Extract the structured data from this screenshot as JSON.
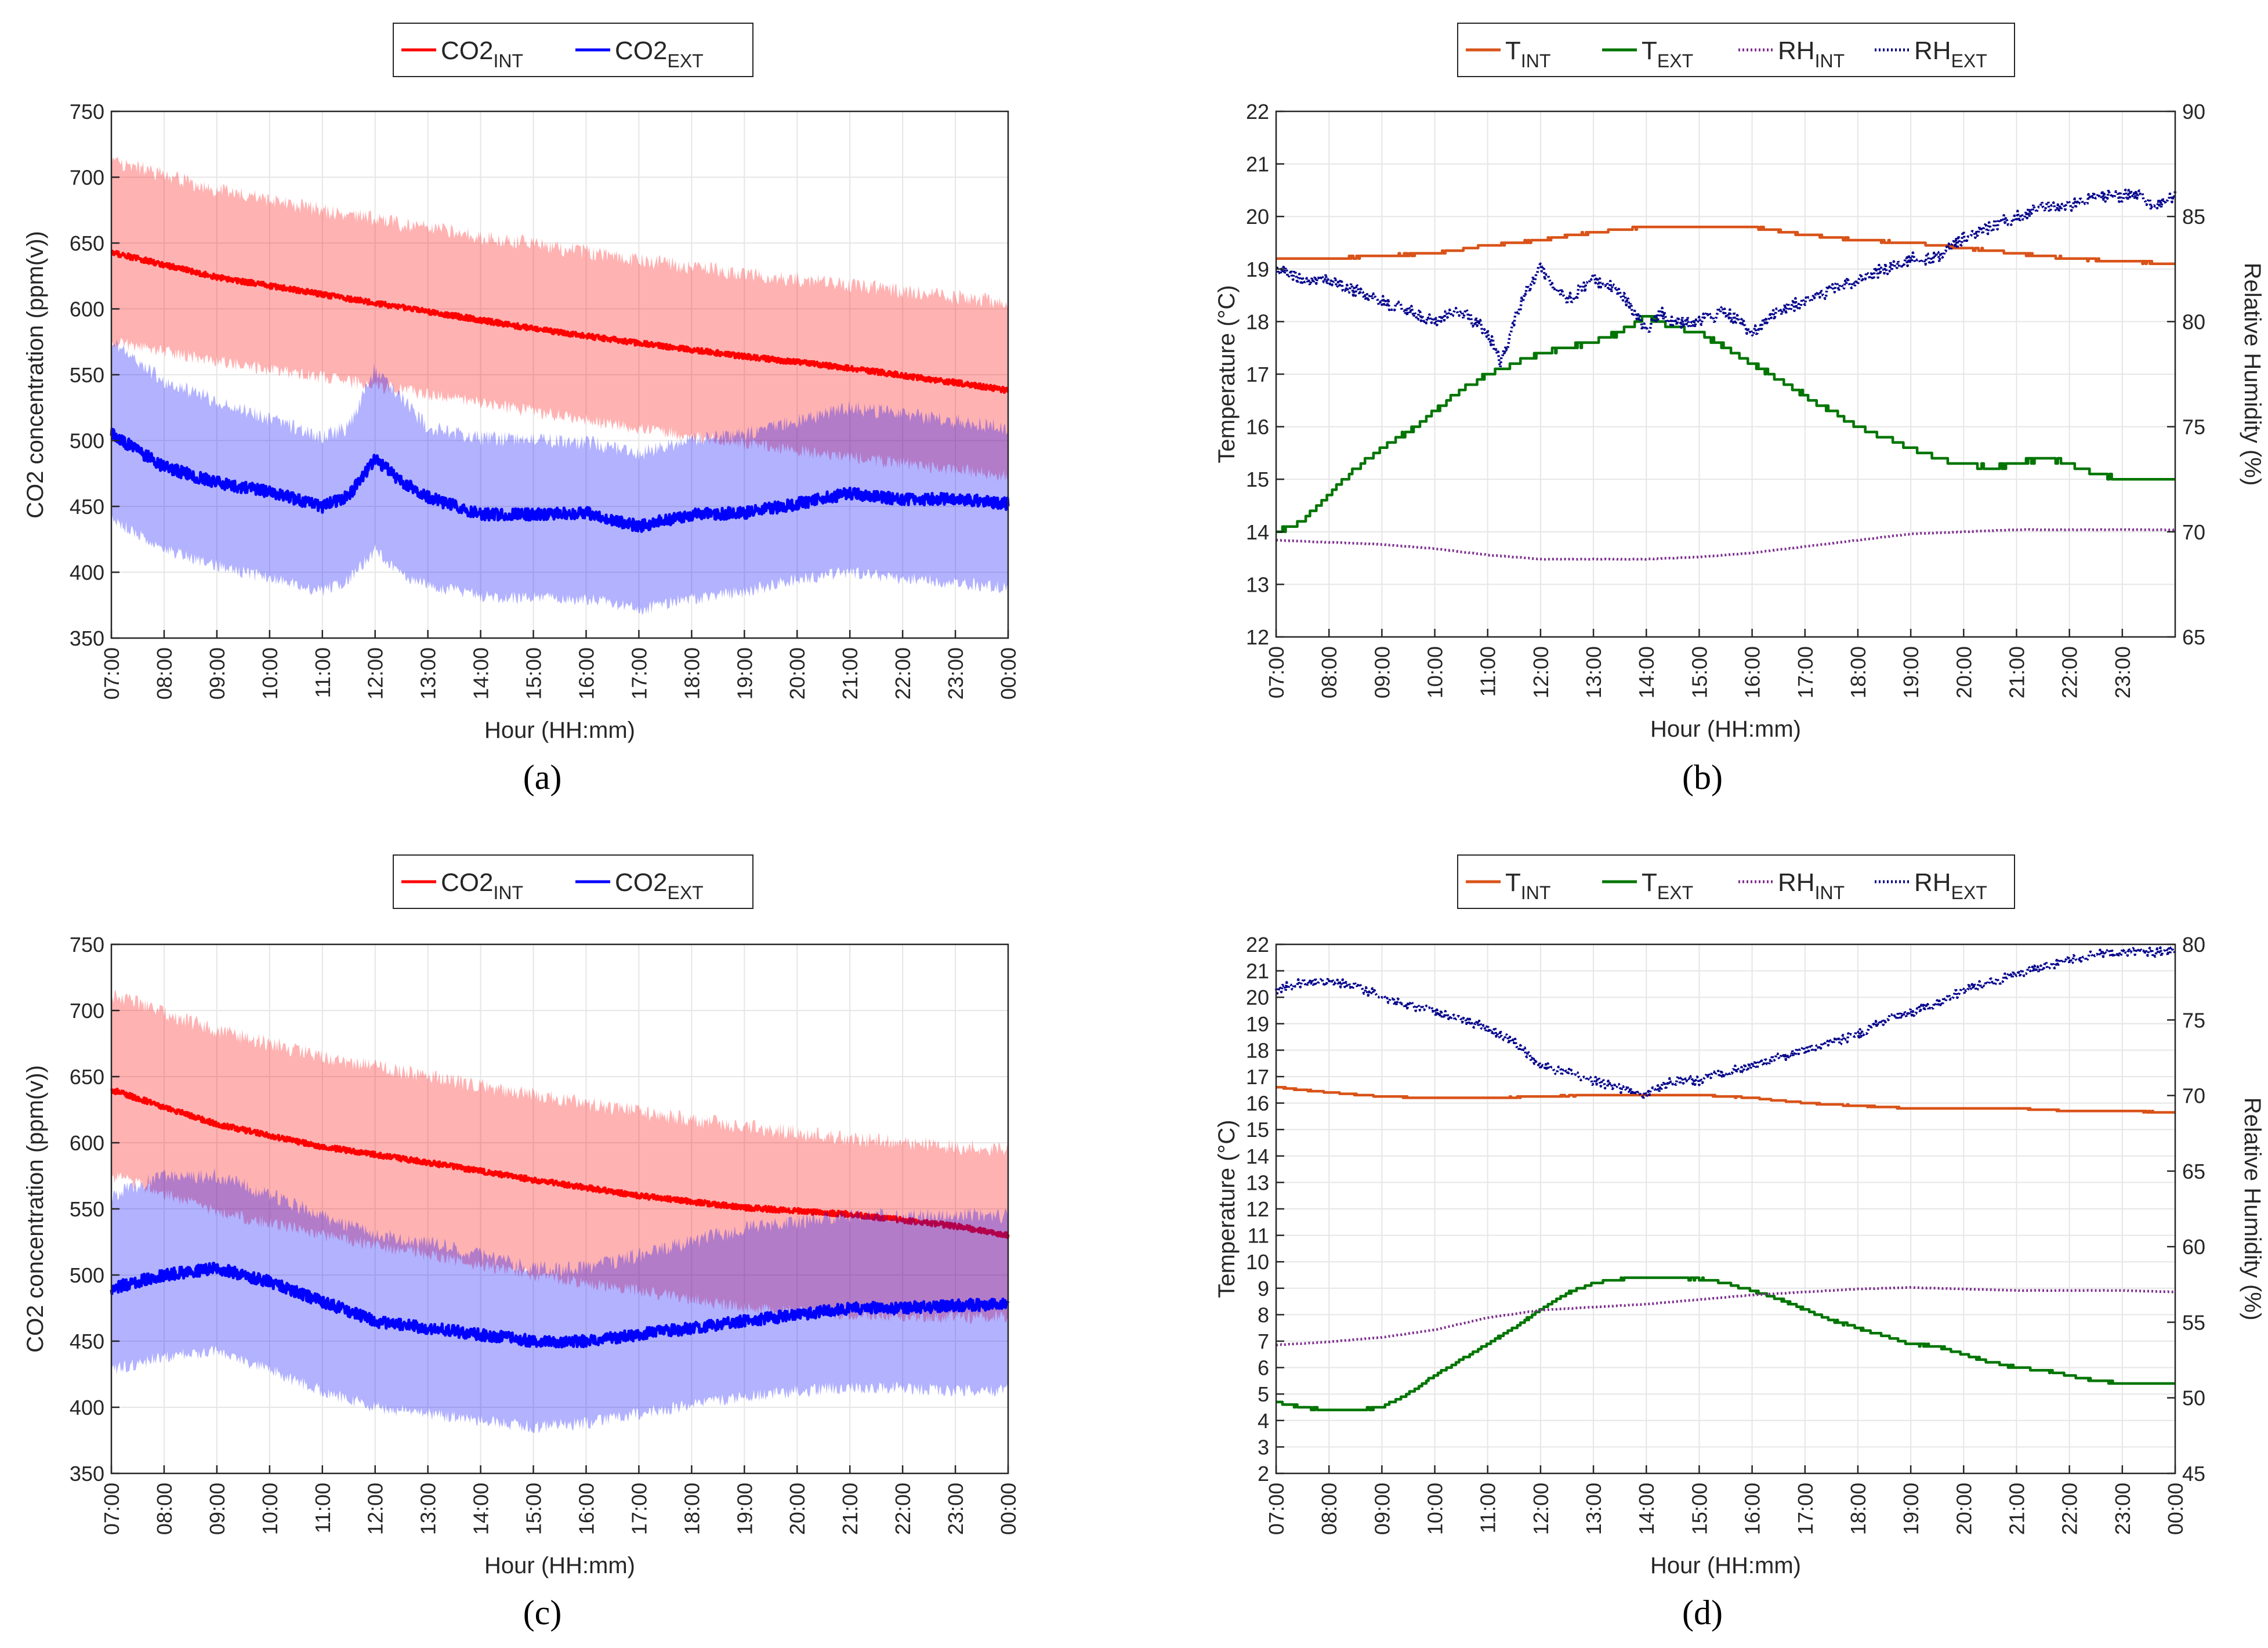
{
  "chart_data": [
    {
      "panel": "(a)",
      "panel_letter": "a",
      "type": "line",
      "xlabel": "Hour (HH:mm)",
      "ylabel": "CO2 concentration (ppm(v))",
      "x_ticks": [
        "07:00",
        "08:00",
        "09:00",
        "10:00",
        "11:00",
        "12:00",
        "13:00",
        "14:00",
        "15:00",
        "16:00",
        "17:00",
        "18:00",
        "19:00",
        "20:00",
        "21:00",
        "22:00",
        "23:00",
        "00:00"
      ],
      "ylim": [
        350,
        750
      ],
      "y_ticks": [
        350,
        400,
        450,
        500,
        550,
        600,
        650,
        700,
        750
      ],
      "legend": [
        {
          "base": "CO2",
          "sub": "INT",
          "color": "#ff0000"
        },
        {
          "base": "CO2",
          "sub": "EXT",
          "color": "#0000ff"
        }
      ],
      "series": [
        {
          "name": "CO2_INT",
          "color": "#ff0000",
          "band_color": "#ff0000",
          "hours": [
            0,
            2,
            4,
            6,
            8,
            10,
            12,
            14,
            16,
            17
          ],
          "mean": [
            643,
            624,
            611,
            598,
            585,
            574,
            564,
            555,
            544,
            538
          ],
          "band_upper": [
            713,
            690,
            675,
            661,
            649,
            637,
            627,
            618,
            609,
            605
          ],
          "band_lower": [
            575,
            560,
            548,
            535,
            522,
            509,
            498,
            487,
            478,
            473
          ]
        },
        {
          "name": "CO2_EXT",
          "color": "#0000ff",
          "band_color": "#0000ff",
          "hours": [
            0,
            1,
            2,
            3,
            4,
            4.5,
            5,
            5.5,
            6,
            7,
            8,
            9,
            10,
            11,
            12,
            13,
            14,
            15,
            16,
            17
          ],
          "mean": [
            505,
            480,
            468,
            461,
            450,
            458,
            486,
            469,
            457,
            444,
            444,
            445,
            435,
            444,
            445,
            452,
            460,
            455,
            456,
            452
          ],
          "band_upper": [
            575,
            545,
            530,
            516,
            503,
            510,
            555,
            532,
            510,
            502,
            500,
            499,
            490,
            500,
            505,
            515,
            525,
            520,
            515,
            510
          ],
          "band_lower": [
            440,
            418,
            405,
            395,
            385,
            395,
            417,
            398,
            390,
            382,
            380,
            380,
            372,
            380,
            385,
            395,
            400,
            395,
            392,
            388
          ]
        }
      ]
    },
    {
      "panel": "(b)",
      "panel_letter": "b",
      "type": "line",
      "xlabel": "Hour (HH:mm)",
      "ylabel": "Temperature (°C)",
      "ylabel_right": "Relative Humidity (%)",
      "x_ticks": [
        "07:00",
        "08:00",
        "09:00",
        "10:00",
        "11:00",
        "12:00",
        "13:00",
        "14:00",
        "15:00",
        "16:00",
        "17:00",
        "18:00",
        "19:00",
        "20:00",
        "21:00",
        "22:00",
        "23:00"
      ],
      "xlim_hours": [
        0,
        17
      ],
      "ylim": [
        12,
        22
      ],
      "y_ticks": [
        12,
        13,
        14,
        15,
        16,
        17,
        18,
        19,
        20,
        21,
        22
      ],
      "ylim_right": [
        65,
        90
      ],
      "y_ticks_right": [
        65,
        70,
        75,
        80,
        85,
        90
      ],
      "legend": [
        {
          "base": "T",
          "sub": "INT",
          "color": "#d95319",
          "style": "solid"
        },
        {
          "base": "T",
          "sub": "EXT",
          "color": "#007500",
          "style": "solid"
        },
        {
          "base": "RH",
          "sub": "INT",
          "color": "#7e2f8e",
          "style": "dotted"
        },
        {
          "base": "RH",
          "sub": "EXT",
          "color": "#00008b",
          "style": "dotted"
        }
      ],
      "series": [
        {
          "name": "T_INT",
          "axis": "left",
          "color": "#d95319",
          "style": "solid",
          "hours": [
            0,
            1,
            2,
            3,
            4,
            5,
            6,
            7,
            8,
            9,
            10,
            11,
            12,
            13,
            14,
            15,
            16,
            17
          ],
          "values": [
            19.2,
            19.2,
            19.25,
            19.3,
            19.45,
            19.55,
            19.7,
            19.8,
            19.8,
            19.8,
            19.65,
            19.55,
            19.5,
            19.4,
            19.3,
            19.2,
            19.15,
            19.1
          ]
        },
        {
          "name": "T_EXT",
          "axis": "left",
          "color": "#007500",
          "style": "solid",
          "hours": [
            0,
            0.5,
            1,
            1.5,
            2,
            2.5,
            3,
            3.5,
            4,
            4.5,
            5,
            5.5,
            6,
            6.5,
            7,
            7.5,
            8,
            8.5,
            9,
            9.5,
            10,
            10.5,
            11,
            11.5,
            12,
            12.5,
            13,
            13.5,
            14,
            14.5,
            15,
            15.5,
            16,
            16.5,
            17
          ],
          "values": [
            14.0,
            14.2,
            14.7,
            15.2,
            15.6,
            15.9,
            16.3,
            16.7,
            17.0,
            17.2,
            17.4,
            17.5,
            17.6,
            17.8,
            18.1,
            17.9,
            17.8,
            17.5,
            17.2,
            16.9,
            16.6,
            16.3,
            16.0,
            15.8,
            15.6,
            15.4,
            15.3,
            15.2,
            15.3,
            15.4,
            15.3,
            15.1,
            15.0,
            15.0,
            15.0
          ]
        },
        {
          "name": "RH_INT",
          "axis": "right",
          "color": "#7e2f8e",
          "style": "dotted",
          "hours": [
            0,
            1,
            2,
            3,
            4,
            5,
            6,
            7,
            8,
            9,
            10,
            11,
            12,
            13,
            14,
            15,
            16,
            17
          ],
          "values": [
            69.6,
            69.5,
            69.4,
            69.2,
            68.9,
            68.7,
            68.7,
            68.7,
            68.8,
            69.0,
            69.3,
            69.6,
            69.9,
            70.0,
            70.1,
            70.1,
            70.1,
            70.1
          ]
        },
        {
          "name": "RH_EXT",
          "axis": "right",
          "color": "#00008b",
          "style": "dotted",
          "hours": [
            0,
            0.5,
            1,
            1.5,
            2,
            2.5,
            3,
            3.5,
            4,
            4.25,
            4.5,
            4.75,
            5,
            5.5,
            6,
            6.5,
            7,
            7.25,
            7.5,
            8,
            8.5,
            9,
            9.5,
            10,
            10.5,
            11,
            11.5,
            12,
            12.5,
            13,
            13.5,
            14,
            14.5,
            15,
            15.5,
            16,
            16.3,
            16.6,
            17
          ],
          "values": [
            82.5,
            82.0,
            82.0,
            81.5,
            81.0,
            80.5,
            80.0,
            80.5,
            79.5,
            78.0,
            80.0,
            81.5,
            82.5,
            81.0,
            82.0,
            81.5,
            79.5,
            80.5,
            80.0,
            80.0,
            80.5,
            79.5,
            80.5,
            81.0,
            81.5,
            82.0,
            82.5,
            83.0,
            83.0,
            84.0,
            84.5,
            85.0,
            85.5,
            85.5,
            86.0,
            86.0,
            86.0,
            85.5,
            86.0
          ]
        }
      ]
    },
    {
      "panel": "(c)",
      "panel_letter": "c",
      "type": "line",
      "xlabel": "Hour (HH:mm)",
      "ylabel": "CO2 concentration (ppm(v))",
      "x_ticks": [
        "07:00",
        "08:00",
        "09:00",
        "10:00",
        "11:00",
        "12:00",
        "13:00",
        "14:00",
        "15:00",
        "16:00",
        "17:00",
        "18:00",
        "19:00",
        "20:00",
        "21:00",
        "22:00",
        "23:00",
        "00:00"
      ],
      "ylim": [
        350,
        750
      ],
      "y_ticks": [
        350,
        400,
        450,
        500,
        550,
        600,
        650,
        700,
        750
      ],
      "legend": [
        {
          "base": "CO2",
          "sub": "INT",
          "color": "#ff0000"
        },
        {
          "base": "CO2",
          "sub": "EXT",
          "color": "#0000ff"
        }
      ],
      "series": [
        {
          "name": "CO2_INT",
          "color": "#ff0000",
          "band_color": "#ff0000",
          "hours": [
            0,
            2,
            4,
            6,
            8,
            10,
            12,
            14,
            16,
            17
          ],
          "mean": [
            640,
            614,
            597,
            585,
            572,
            560,
            551,
            546,
            537,
            530
          ],
          "band_upper": [
            712,
            685,
            665,
            650,
            636,
            623,
            612,
            603,
            597,
            595
          ],
          "band_lower": [
            575,
            548,
            530,
            515,
            500,
            488,
            475,
            470,
            468,
            468
          ]
        },
        {
          "name": "CO2_EXT",
          "color": "#0000ff",
          "band_color": "#0000ff",
          "hours": [
            0,
            1,
            2,
            3,
            4,
            5,
            6,
            7,
            8,
            9,
            10,
            11,
            12,
            13,
            14,
            15,
            16,
            17
          ],
          "mean": [
            490,
            500,
            505,
            495,
            480,
            465,
            460,
            455,
            450,
            450,
            455,
            460,
            465,
            470,
            475,
            475,
            477,
            478
          ],
          "band_upper": [
            560,
            575,
            575,
            560,
            545,
            530,
            525,
            515,
            505,
            505,
            515,
            525,
            535,
            540,
            545,
            545,
            545,
            545
          ],
          "band_lower": [
            428,
            438,
            443,
            428,
            412,
            400,
            395,
            390,
            385,
            388,
            395,
            402,
            408,
            412,
            415,
            414,
            413,
            413
          ]
        }
      ]
    },
    {
      "panel": "(d)",
      "panel_letter": "d",
      "type": "line",
      "xlabel": "Hour (HH:mm)",
      "ylabel": "Temperature (°C)",
      "ylabel_right": "Relative Humidity (%)",
      "x_ticks": [
        "07:00",
        "08:00",
        "09:00",
        "10:00",
        "11:00",
        "12:00",
        "13:00",
        "14:00",
        "15:00",
        "16:00",
        "17:00",
        "18:00",
        "19:00",
        "20:00",
        "21:00",
        "22:00",
        "23:00",
        "00:00"
      ],
      "xlim_hours": [
        0,
        17
      ],
      "ylim": [
        2,
        22
      ],
      "y_ticks": [
        2,
        3,
        4,
        5,
        6,
        7,
        8,
        9,
        10,
        11,
        12,
        13,
        14,
        15,
        16,
        17,
        18,
        19,
        20,
        21,
        22
      ],
      "ylim_right": [
        45,
        80
      ],
      "y_ticks_right": [
        45,
        50,
        55,
        60,
        65,
        70,
        75,
        80
      ],
      "legend": [
        {
          "base": "T",
          "sub": "INT",
          "color": "#d95319",
          "style": "solid"
        },
        {
          "base": "T",
          "sub": "EXT",
          "color": "#007500",
          "style": "solid"
        },
        {
          "base": "RH",
          "sub": "INT",
          "color": "#7e2f8e",
          "style": "dotted"
        },
        {
          "base": "RH",
          "sub": "EXT",
          "color": "#00008b",
          "style": "dotted"
        }
      ],
      "series": [
        {
          "name": "T_INT",
          "axis": "left",
          "color": "#d95319",
          "style": "solid",
          "hours": [
            0,
            1,
            2,
            3,
            4,
            5,
            6,
            7,
            8,
            9,
            10,
            11,
            12,
            13,
            14,
            15,
            16,
            17
          ],
          "values": [
            16.6,
            16.4,
            16.25,
            16.2,
            16.2,
            16.25,
            16.3,
            16.3,
            16.3,
            16.2,
            16.0,
            15.9,
            15.8,
            15.8,
            15.8,
            15.7,
            15.7,
            15.65
          ]
        },
        {
          "name": "T_EXT",
          "axis": "left",
          "color": "#007500",
          "style": "solid",
          "hours": [
            0,
            0.5,
            1,
            1.5,
            2,
            2.5,
            3,
            3.5,
            4,
            4.5,
            5,
            5.5,
            6,
            6.5,
            7,
            7.5,
            8,
            8.5,
            9,
            9.5,
            10,
            10.5,
            11,
            11.5,
            12,
            12.5,
            13,
            13.5,
            14,
            14.5,
            15,
            15.5,
            16,
            16.5,
            17
          ],
          "values": [
            4.7,
            4.5,
            4.4,
            4.4,
            4.5,
            5.0,
            5.7,
            6.3,
            6.9,
            7.5,
            8.2,
            8.8,
            9.2,
            9.35,
            9.4,
            9.4,
            9.35,
            9.2,
            8.9,
            8.6,
            8.2,
            7.8,
            7.5,
            7.2,
            6.9,
            6.8,
            6.5,
            6.2,
            6.0,
            5.9,
            5.7,
            5.5,
            5.4,
            5.4,
            5.4
          ]
        },
        {
          "name": "RH_INT",
          "axis": "right",
          "color": "#7e2f8e",
          "style": "dotted",
          "hours": [
            0,
            1,
            2,
            3,
            4,
            5,
            6,
            7,
            8,
            9,
            10,
            11,
            12,
            13,
            14,
            15,
            16,
            17
          ],
          "values": [
            53.5,
            53.7,
            54.0,
            54.5,
            55.3,
            55.8,
            56.0,
            56.2,
            56.5,
            56.8,
            57.0,
            57.2,
            57.3,
            57.2,
            57.1,
            57.1,
            57.1,
            57.0
          ]
        },
        {
          "name": "RH_EXT",
          "axis": "right",
          "color": "#00008b",
          "style": "dotted",
          "hours": [
            0,
            0.5,
            1,
            1.5,
            2,
            2.5,
            3,
            3.5,
            4,
            4.5,
            5,
            5.5,
            6,
            6.5,
            7,
            7.25,
            7.5,
            8,
            8.5,
            9,
            9.5,
            10,
            10.5,
            11,
            11.5,
            12,
            12.5,
            13,
            13.5,
            14,
            14.5,
            15,
            15.5,
            16,
            16.5,
            17
          ],
          "values": [
            77.0,
            77.5,
            77.5,
            77.3,
            76.5,
            76.0,
            75.5,
            75.0,
            74.5,
            73.5,
            72.0,
            71.5,
            71.0,
            70.5,
            70.0,
            70.5,
            71.0,
            71.0,
            71.5,
            72.0,
            72.5,
            73.0,
            73.5,
            74.0,
            75.0,
            75.5,
            76.0,
            77.0,
            77.5,
            78.0,
            78.5,
            79.0,
            79.3,
            79.5,
            79.5,
            79.5
          ]
        }
      ]
    }
  ]
}
